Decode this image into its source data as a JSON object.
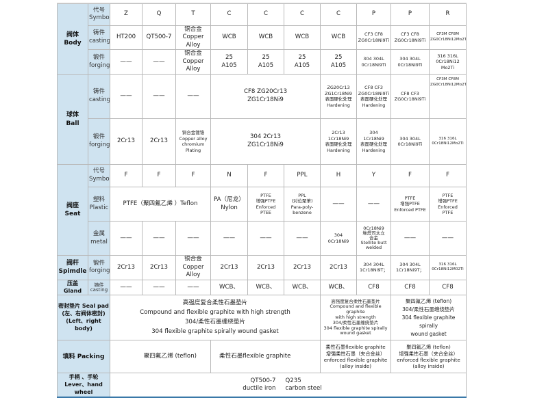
{
  "body": {
    "group": "阀体\nBody",
    "symbol": {
      "label": "代号\nSymbol",
      "cells": [
        "Z",
        "Q",
        "T",
        "C",
        "C",
        "C",
        "C",
        "P",
        "P",
        "R"
      ]
    },
    "casting": {
      "label": "铸件\ncasting",
      "cells": [
        "HT200",
        "QT500-7",
        "铜合金\nCopper Alloy",
        "WCB",
        "WCB",
        "WCB",
        "WCB",
        "CF3   CF8\nZG0Cr18Ni9Ti",
        "CF3    CF8\nZG0Cr18Ni9Ti",
        "CF3M CF8M\nZG0Cr18Ni12Mo2Ti"
      ]
    },
    "forging": {
      "label": "锻件\nforging",
      "cells": [
        "——",
        "——",
        "铜合金\nCopper Alloy",
        "25\nA105",
        "25\nA105",
        "25\nA105",
        "25\nA105",
        "304 304L\n0Cr18Ni9Ti",
        "304 304L\n0Cr18Ni9Ti",
        "316 316L\n0Cr18Ni12\nMo2Ti"
      ]
    }
  },
  "ball": {
    "group": "球体\nBall",
    "casting": {
      "label": "铸件\ncasting",
      "cells": [
        "——",
        "——",
        "——",
        "CF8   ZG20Cr13\nZG1Cr18Ni9",
        "ZG20Cr13\nZG1Cr18Ni9\n表面硬化处理\nHardening",
        "CF8   CF3\nZG0Cr18Ni9Ti\n表面硬化处理\nHardening",
        "CF8 CF3\nZG0Cr18Ni9Ti",
        "CF3M CF8M\nZG0Cr18Ni12Mo2Ti"
      ]
    },
    "forging": {
      "label": "锻件\nforging",
      "cells": [
        "2Cr13",
        "2Cr13",
        "铜合金镀铬\nCopper alloy\nchromium\nPlating",
        "304   2Cr13\nZG1Cr18Ni9",
        "2Cr13\n1Cr18Ni9\n表面硬化处理\nHardening",
        "304\n1Cr18Ni9\n表面硬化处理\nHardening",
        "304 304L\n0Cr18Ni9Ti",
        "316 316L\n0Cr18Ni12Mo2Ti"
      ]
    }
  },
  "seat": {
    "group": "阀座\nSeat",
    "symbol": {
      "label": "代号\nSymbol",
      "cells": [
        "F",
        "F",
        "F",
        "N",
        "F",
        "PPL",
        "H",
        "Y",
        "F",
        "F"
      ]
    },
    "plastic": {
      "label": "塑料\nPlastic",
      "cells": [
        "PTFE（聚四氟乙烯 ）Teflon",
        "PA（尼龙）\nNylon",
        "PTFE\n增强PTFE\nEnforced\nPTEE",
        "PPL\n(对位聚苯)\nPara-poly-\nbenzene",
        "——",
        "——",
        "PTFE\n增强PTFE\nEnforced PTFE",
        "PTFE\n增强PTFE\nEnforced\nPTFE"
      ]
    },
    "metal": {
      "label": "金属\nmetal",
      "cells": [
        "——",
        "——",
        "——",
        "——",
        "——",
        "——",
        "304\n0Cr18Ni9",
        "0Cr18Ni9\n堆焊司太立\n合金\nStellite butt\nwelded",
        "——",
        "——"
      ]
    }
  },
  "spindle": {
    "group": "阀杆\nSpimdle",
    "label": "锻件\nforging",
    "cells": [
      "2Cr13",
      "2Cr13",
      "铜合金\nCopper Alloy",
      "2Cr13",
      "2Cr13",
      "2Cr13",
      "2Cr13",
      "304 304L\n1Cr18Ni9T；",
      "304 304L\n1Cr18Ni9T；",
      "316 316L\n0Cr18Ni12M02Ti"
    ]
  },
  "gland": {
    "group": "压盖 Gland",
    "label": "铸件\ncasting",
    "cells": [
      "——",
      "——",
      "——",
      "WCB、",
      "WCB、",
      "WCB、",
      "WCB、",
      "CF8",
      "CF8",
      "CF8"
    ]
  },
  "seal_pad": {
    "group": "密封垫片 Seal pad\n(左、右阀体密封)\n(Left、right body)",
    "cells": [
      "高强度复合柔性石墨垫片\nCompound and flexible graphite with high strength\n304/柔性石墨缠绕垫片\n304 flexible graphite spirally wound gasket",
      "高强度复合柔性石墨垫片\nCompound and flexible graphite\nwith high strength\n304/柔性石墨缠绕垫片\n304 flexible graphite spirally\nwound gasket",
      "聚四氟乙烯 (teflon)\n304/柔性石墨缠绕垫片\n304 flexible graphite spirally\nwound gasket"
    ]
  },
  "packing": {
    "group": "填料 Packing",
    "cell_a": "聚四氟乙烯 (teflon)",
    "cell_b": "柔性石墨flexible graphite",
    "cells": [
      "柔性石墨flexible graphite\n增强柔性石墨（夹合金丝）\nenforced flexible graphite\n(alloy inside)",
      "聚四氟乙烯 (teflon)\n增强柔性石墨（夹合金丝）\nenforced flexible graphite\n(alloy inside)"
    ]
  },
  "lever": {
    "group": "手柄 、手轮\nLever、hand wheel",
    "a": "QT500-7\nductile iron",
    "b": "Q235\ncarbon steel"
  }
}
